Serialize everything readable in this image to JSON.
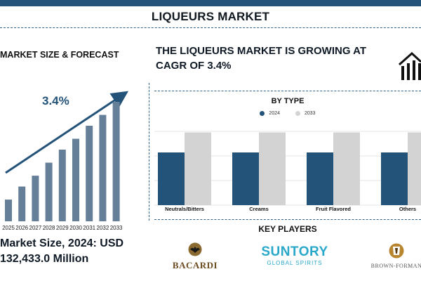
{
  "header": {
    "title": "LIQUEURS MARKET"
  },
  "left": {
    "heading": "MARKET SIZE & FORECAST",
    "growth_label": "3.4%",
    "market_size_line1": "Market Size, 2024: USD",
    "market_size_line2": "132,433.0 Million"
  },
  "headline": "THE LIQUEURS MARKET IS GROWING AT CAGR OF 3.4%",
  "by_type": {
    "title": "BY TYPE"
  },
  "key_players": {
    "title": "KEY PLAYERS",
    "logos": [
      {
        "name": "BACARDI",
        "icon": "bat-icon"
      },
      {
        "name": "SUNTORY",
        "sub": "GLOBAL SPIRITS"
      },
      {
        "name": "BROWN-FORMAN",
        "icon": "crest-icon"
      }
    ]
  },
  "colors": {
    "primary": "#24537a",
    "forecast_bar": "#667f99",
    "secondary": "#d3d3d3",
    "suntory": "#2aa8c9"
  },
  "chart_data": [
    {
      "type": "bar",
      "title": "MARKET SIZE & FORECAST",
      "categories": [
        "2025",
        "2026",
        "2027",
        "2028",
        "2029",
        "2030",
        "2031",
        "2032",
        "2033"
      ],
      "values": [
        1.0,
        1.6,
        2.1,
        2.7,
        3.3,
        3.8,
        4.4,
        4.9,
        5.5
      ],
      "annotation": "3.4%"
    },
    {
      "type": "bar",
      "title": "BY TYPE",
      "categories": [
        "Neutrals/Bitters",
        "Creams",
        "Fruit Flavored",
        "Others"
      ],
      "series": [
        {
          "name": "2024",
          "values": [
            100,
            100,
            100,
            100
          ]
        },
        {
          "name": "2033",
          "values": [
            138,
            138,
            138,
            138
          ]
        }
      ],
      "legend": "top-center",
      "grid": true
    }
  ]
}
